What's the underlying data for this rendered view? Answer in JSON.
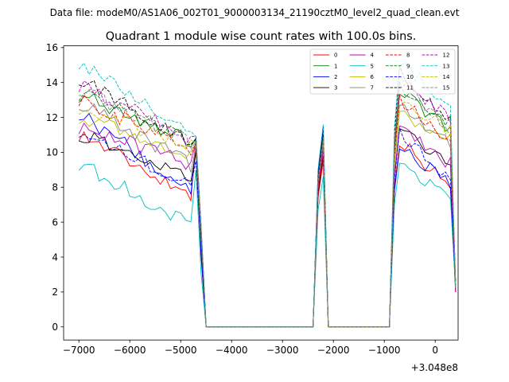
{
  "chart_data": {
    "type": "line",
    "suptitle": "Data file: modeM0/AS1A06_002T01_9000003134_21190cztM0_level2_quad_clean.evt",
    "title": "Quadrant 1 module wise count rates with 100.0s bins.",
    "xlabel": "",
    "ylabel": "",
    "offset_label": "+3.048e8",
    "xlim": [
      -7300,
      450
    ],
    "ylim": [
      -0.75,
      16.1
    ],
    "xticks": [
      -7000,
      -6000,
      -5000,
      -4000,
      -3000,
      -2000,
      -1000,
      0
    ],
    "xtick_labels": [
      "−7000",
      "−6000",
      "−5000",
      "−4000",
      "−3000",
      "−2000",
      "−1000",
      "0"
    ],
    "yticks": [
      0,
      2,
      4,
      6,
      8,
      10,
      12,
      14,
      16
    ],
    "ytick_labels": [
      "0",
      "2",
      "4",
      "6",
      "8",
      "10",
      "12",
      "14",
      "16"
    ],
    "grid": false,
    "legend_position": "top-right",
    "segments": [
      {
        "x_start": -7000,
        "x_end": -4700,
        "step": 100
      },
      {
        "x_start": -2300,
        "x_end": -2100,
        "step": 100
      },
      {
        "x_start": -800,
        "x_end": 400,
        "step": 100
      }
    ],
    "series": [
      {
        "name": "0",
        "color": "#ff0000",
        "dash": "solid",
        "start": 11.1,
        "end": 7.4,
        "peak": 10.9,
        "gap_peak": 9.5,
        "resume": 10.7,
        "final": 8.0
      },
      {
        "name": "1",
        "color": "#008000",
        "dash": "solid",
        "start": 13.3,
        "end": 10.4,
        "peak": 10.8,
        "gap_peak": 11.2,
        "resume": 13.6,
        "final": 11.2
      },
      {
        "name": "2",
        "color": "#0000ff",
        "dash": "solid",
        "start": 12.3,
        "end": 7.5,
        "peak": 10.2,
        "gap_peak": 11.5,
        "resume": 10.4,
        "final": 8.2
      },
      {
        "name": "3",
        "color": "#000000",
        "dash": "solid",
        "start": 11.1,
        "end": 8.2,
        "peak": 10.0,
        "gap_peak": 9.8,
        "resume": 11.5,
        "final": 9.2
      },
      {
        "name": "4",
        "color": "#bf00bf",
        "dash": "solid",
        "start": 11.5,
        "end": 9.2,
        "peak": 10.6,
        "gap_peak": 10.2,
        "resume": 11.6,
        "final": 9.3
      },
      {
        "name": "5",
        "color": "#00bfbf",
        "dash": "solid",
        "start": 9.4,
        "end": 5.6,
        "peak": 9.0,
        "gap_peak": 8.6,
        "resume": 9.4,
        "final": 7.4
      },
      {
        "name": "6",
        "color": "#bfbf00",
        "dash": "solid",
        "start": 12.1,
        "end": 9.6,
        "peak": 10.4,
        "gap_peak": 10.6,
        "resume": 12.3,
        "final": 10.8
      },
      {
        "name": "7",
        "color": "#808080",
        "dash": "solid",
        "start": 12.9,
        "end": 9.1,
        "peak": 10.3,
        "gap_peak": 10.5,
        "resume": 12.6,
        "final": 10.5
      },
      {
        "name": "8",
        "color": "#ff0000",
        "dash": "dashed",
        "start": 13.1,
        "end": 10.0,
        "peak": 10.6,
        "gap_peak": 10.1,
        "resume": 13.1,
        "final": 10.6
      },
      {
        "name": "9",
        "color": "#008000",
        "dash": "dashed",
        "start": 13.4,
        "end": 10.5,
        "peak": 10.7,
        "gap_peak": 11.0,
        "resume": 13.8,
        "final": 11.7
      },
      {
        "name": "10",
        "color": "#0000ff",
        "dash": "dashed",
        "start": 11.3,
        "end": 8.0,
        "peak": 9.5,
        "gap_peak": 10.9,
        "resume": 11.1,
        "final": 8.5
      },
      {
        "name": "11",
        "color": "#000000",
        "dash": "dashed",
        "start": 14.3,
        "end": 10.2,
        "peak": 10.8,
        "gap_peak": 11.1,
        "resume": 14.6,
        "final": 11.8
      },
      {
        "name": "12",
        "color": "#bf00bf",
        "dash": "dashed",
        "start": 13.9,
        "end": 10.6,
        "peak": 10.9,
        "gap_peak": 10.4,
        "resume": 14.1,
        "final": 11.9
      },
      {
        "name": "13",
        "color": "#00bfbf",
        "dash": "dashed",
        "start": 15.2,
        "end": 10.7,
        "peak": 10.9,
        "gap_peak": 11.6,
        "resume": 15.3,
        "final": 12.6
      },
      {
        "name": "14",
        "color": "#bfbf00",
        "dash": "dashed",
        "start": 12.6,
        "end": 10.2,
        "peak": 10.5,
        "gap_peak": 10.7,
        "resume": 12.9,
        "final": 11.2
      },
      {
        "name": "15",
        "color": "#808080",
        "dash": "dashed",
        "start": 13.7,
        "end": 10.4,
        "peak": 10.6,
        "gap_peak": 10.8,
        "resume": 14.2,
        "final": 11.0
      }
    ]
  }
}
